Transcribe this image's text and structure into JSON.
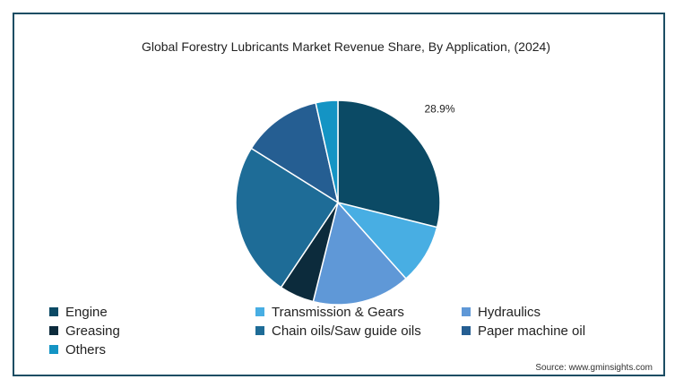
{
  "chart_data": {
    "type": "pie",
    "title": "Global Forestry Lubricants Market Revenue Share, By Application, (2024)",
    "categories": [
      "Engine",
      "Transmission & Gears",
      "Hydraulics",
      "Greasing",
      "Chain oils/Saw guide oils",
      "Paper machine oil",
      "Others"
    ],
    "values": [
      28.9,
      9.5,
      15.5,
      5.5,
      24.5,
      12.6,
      3.5
    ],
    "colors": [
      "#0b4a65",
      "#48aee3",
      "#5f98d7",
      "#0c2b3c",
      "#1e6c97",
      "#255e92",
      "#1494c4"
    ],
    "data_labels": [
      "28.9%",
      "",
      "",
      "",
      "",
      "",
      ""
    ],
    "legend_position": "bottom"
  },
  "source": "Source: www.gminsights.com"
}
